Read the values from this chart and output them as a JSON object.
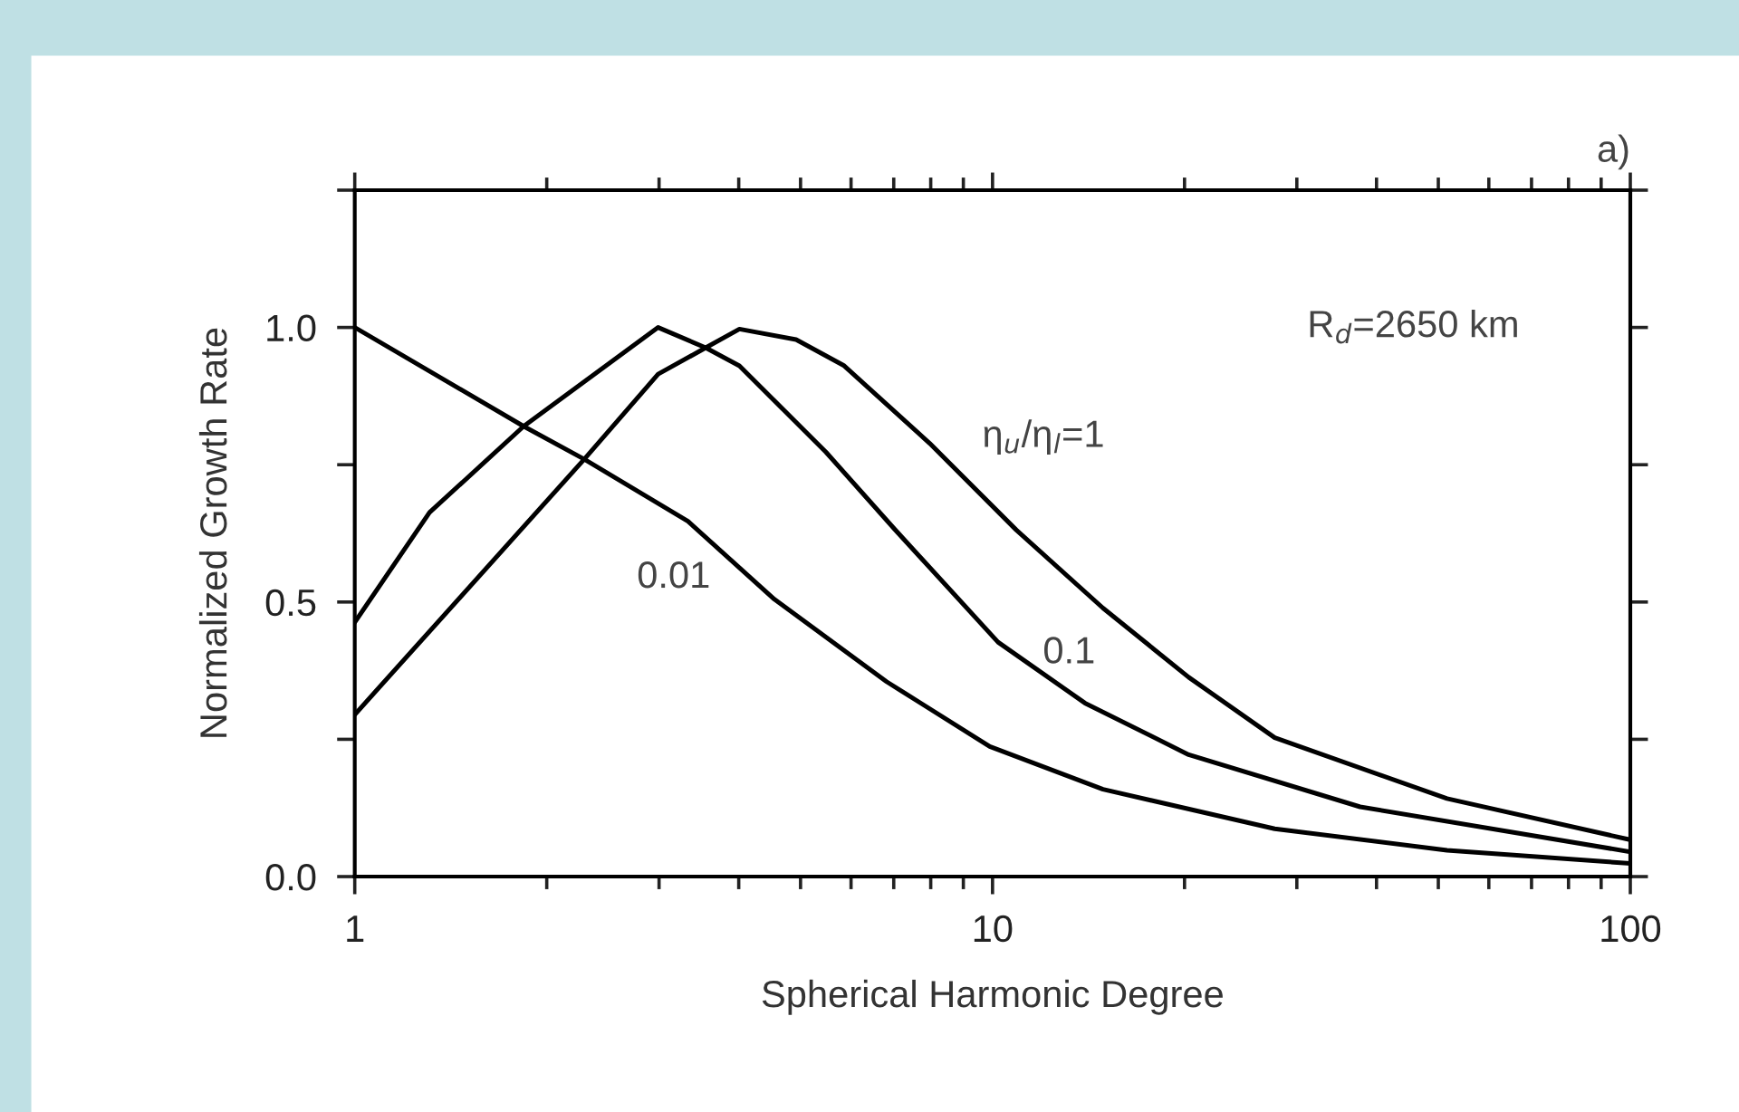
{
  "chart_data": {
    "type": "line",
    "xlabel": "Spherical Harmonic Degree",
    "ylabel": "Normalized Growth Rate",
    "log": "x",
    "xlim": [
      1,
      100
    ],
    "ylim": [
      0,
      1.25
    ],
    "xticks": [
      1,
      {
        "value": 2,
        "label": null
      },
      {
        "value": 3,
        "label": null
      },
      {
        "value": 4,
        "label": null
      },
      {
        "value": 5,
        "label": null
      },
      {
        "value": 6,
        "label": null
      },
      {
        "value": 7,
        "label": null
      },
      {
        "value": 8,
        "label": null
      },
      {
        "value": 9,
        "label": null
      },
      10,
      {
        "value": 20,
        "label": null
      },
      {
        "value": 30,
        "label": null
      },
      {
        "value": 40,
        "label": null
      },
      {
        "value": 50,
        "label": null
      },
      {
        "value": 60,
        "label": null
      },
      {
        "value": 70,
        "label": null
      },
      {
        "value": 80,
        "label": null
      },
      {
        "value": 90,
        "label": null
      },
      100
    ],
    "yticks": [
      {
        "value": 0.0,
        "label": "0.0"
      },
      {
        "value": 0.25,
        "label": null
      },
      {
        "value": 0.5,
        "label": "0.5"
      },
      {
        "value": 0.75,
        "label": null
      },
      {
        "value": 1.0,
        "label": "1.0"
      },
      {
        "value": 1.25,
        "label": null
      }
    ],
    "grid": false,
    "marker": "none",
    "line_style": "solid",
    "series": [
      {
        "color": "#000000",
        "x": [
          1,
          1.84,
          2.29,
          3.33,
          4.55,
          6.82,
          9.9,
          14.9,
          27.7,
          51.6,
          100
        ],
        "values": [
          1.0,
          0.82,
          0.76,
          0.647,
          0.505,
          0.355,
          0.237,
          0.159,
          0.087,
          0.048,
          0.024
        ]
      },
      {
        "color": "#000000",
        "x": [
          1,
          1.31,
          1.84,
          2.99,
          3.55,
          4.01,
          5.48,
          7.03,
          10.2,
          13.96,
          20.3,
          37.7,
          100
        ],
        "values": [
          0.463,
          0.663,
          0.82,
          1.0,
          0.963,
          0.93,
          0.773,
          0.632,
          0.427,
          0.316,
          0.222,
          0.127,
          0.045
        ]
      },
      {
        "color": "#000000",
        "x": [
          1,
          2.29,
          2.99,
          3.55,
          4.01,
          4.92,
          5.84,
          7.97,
          10.9,
          14.9,
          20.3,
          27.7,
          51.6,
          100
        ],
        "values": [
          0.295,
          0.76,
          0.915,
          0.963,
          0.997,
          0.978,
          0.931,
          0.789,
          0.631,
          0.489,
          0.363,
          0.253,
          0.142,
          0.067
        ]
      }
    ],
    "annotations": [
      "η$_{u}$/η$_{l}$=1",
      "0.1",
      "0.01",
      "R$_{d}$=2650 km",
      "a)"
    ]
  }
}
